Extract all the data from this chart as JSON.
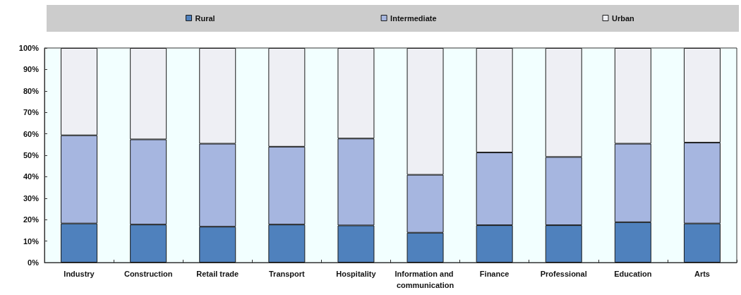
{
  "chart_data": {
    "type": "bar",
    "stacked": true,
    "categories": [
      "Industry",
      "Construction",
      "Retail trade",
      "Transport",
      "Hospitality",
      "Information and communication",
      "Finance",
      "Professional",
      "Education",
      "Arts"
    ],
    "series": [
      {
        "name": "Rural",
        "color": "#4f81bd",
        "values": [
          18.2,
          17.7,
          16.7,
          17.7,
          17.3,
          13.9,
          17.4,
          17.4,
          18.8,
          18.2
        ]
      },
      {
        "name": "Intermediate",
        "color": "#a6b6e0",
        "values": [
          41.1,
          39.7,
          38.7,
          36.3,
          40.5,
          27.0,
          33.9,
          31.8,
          36.6,
          37.7
        ]
      },
      {
        "name": "Urban",
        "color": "#eeeff4",
        "values": [
          40.7,
          42.6,
          44.6,
          46.0,
          42.2,
          59.1,
          48.7,
          50.8,
          44.6,
          44.1
        ]
      }
    ],
    "ylim": [
      0,
      100
    ],
    "yticks": [
      {
        "value": 0,
        "label": "0%"
      },
      {
        "value": 10,
        "label": "10%"
      },
      {
        "value": 20,
        "label": "20%"
      },
      {
        "value": 30,
        "label": "30%"
      },
      {
        "value": 40,
        "label": "40%"
      },
      {
        "value": 50,
        "label": "50%"
      },
      {
        "value": 60,
        "label": "60%"
      },
      {
        "value": 70,
        "label": "70%"
      },
      {
        "value": 80,
        "label": "80%"
      },
      {
        "value": 90,
        "label": "90%"
      },
      {
        "value": 100,
        "label": "100%"
      }
    ],
    "grid": false,
    "legend": "top"
  }
}
